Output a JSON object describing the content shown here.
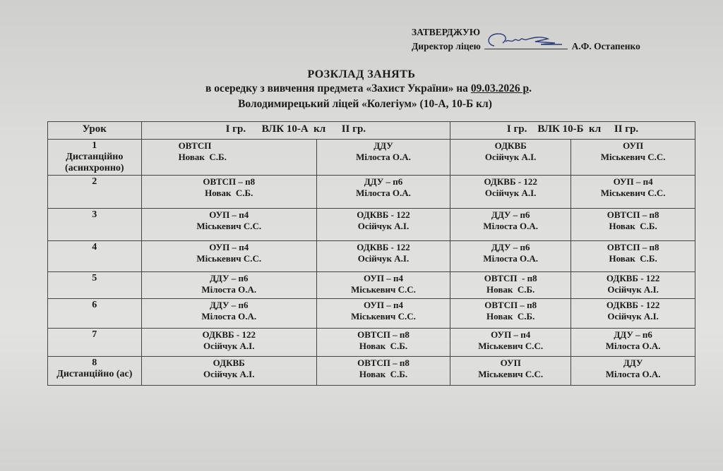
{
  "approval": {
    "heading": "ЗАТВЕРДЖУЮ",
    "position": "Директор ліцею",
    "name": "А.Ф. Остапенко"
  },
  "title": {
    "line1": "РОЗКЛАД  ЗАНЯТЬ",
    "line2_prefix": "в осередку з вивчення предмета «Захист України» на ",
    "date": "09.03.2026 р",
    "date_suffix": ".",
    "line3": "Володимирецький ліцей «Колегіум»  (10-А, 10-Б кл)"
  },
  "table": {
    "headers": [
      "Урок",
      "І гр.      ВЛК 10-А  кл      ІІ гр.",
      "І гр.    ВЛК 10-Б  кл     ІІ гр."
    ],
    "rows": [
      {
        "lesson": [
          "1",
          "Дистанційно",
          "(асинхронно)"
        ],
        "cells": [
          [
            "ОВТСП",
            "Новак  С.Б."
          ],
          [
            "ДДУ",
            "Мілоста О.А."
          ],
          [
            "ОДКВБ",
            "Осійчук А.І."
          ],
          [
            "ОУП",
            "Міськевич С.С."
          ]
        ]
      },
      {
        "lesson": [
          "2"
        ],
        "cells": [
          [
            "ОВТСП – п8",
            "Новак  С.Б."
          ],
          [
            "ДДУ – п6",
            "Мілоста О.А."
          ],
          [
            "ОДКВБ - 122",
            "Осійчук А.І."
          ],
          [
            "ОУП – п4",
            "Міськевич С.С."
          ]
        ]
      },
      {
        "lesson": [
          "3"
        ],
        "cells": [
          [
            "ОУП – п4",
            "Міськевич С.С."
          ],
          [
            "ОДКВБ - 122",
            "Осійчук А.І."
          ],
          [
            "ДДУ – п6",
            "Мілоста О.А."
          ],
          [
            "ОВТСП – п8",
            "Новак  С.Б."
          ]
        ]
      },
      {
        "lesson": [
          "4"
        ],
        "cells": [
          [
            "ОУП – п4",
            "Міськевич С.С."
          ],
          [
            "ОДКВБ - 122",
            "Осійчук А.І."
          ],
          [
            "ДДУ – п6",
            "Мілоста О.А."
          ],
          [
            "ОВТСП – п8",
            "Новак  С.Б."
          ]
        ]
      },
      {
        "lesson": [
          "5"
        ],
        "cells": [
          [
            "ДДУ – п6",
            "Мілоста О.А."
          ],
          [
            "ОУП – п4",
            "Міськевич С.С."
          ],
          [
            "ОВТСП  - п8",
            "Новак  С.Б."
          ],
          [
            "ОДКВБ - 122",
            "Осійчук А.І."
          ]
        ]
      },
      {
        "lesson": [
          "6"
        ],
        "cells": [
          [
            "ДДУ – п6",
            "Мілоста О.А."
          ],
          [
            "ОУП – п4",
            "Міськевич С.С."
          ],
          [
            "ОВТСП – п8",
            "Новак  С.Б."
          ],
          [
            "ОДКВБ - 122",
            "Осійчук А.І."
          ]
        ]
      },
      {
        "lesson": [
          "7"
        ],
        "cells": [
          [
            "ОДКВБ - 122",
            "Осійчук А.І."
          ],
          [
            "ОВТСП – п8",
            "Новак  С.Б."
          ],
          [
            "ОУП – п4",
            "Міськевич С.С."
          ],
          [
            "ДДУ – п6",
            "Мілоста О.А."
          ]
        ]
      },
      {
        "lesson": [
          "8",
          "Дистанційно (ас)"
        ],
        "cells": [
          [
            "ОДКВБ",
            "Осійчук А.І."
          ],
          [
            "ОВТСП – п8",
            "Новак  С.Б."
          ],
          [
            "ОУП",
            "Міськевич С.С."
          ],
          [
            "ДДУ",
            "Мілоста О.А."
          ]
        ]
      }
    ]
  }
}
